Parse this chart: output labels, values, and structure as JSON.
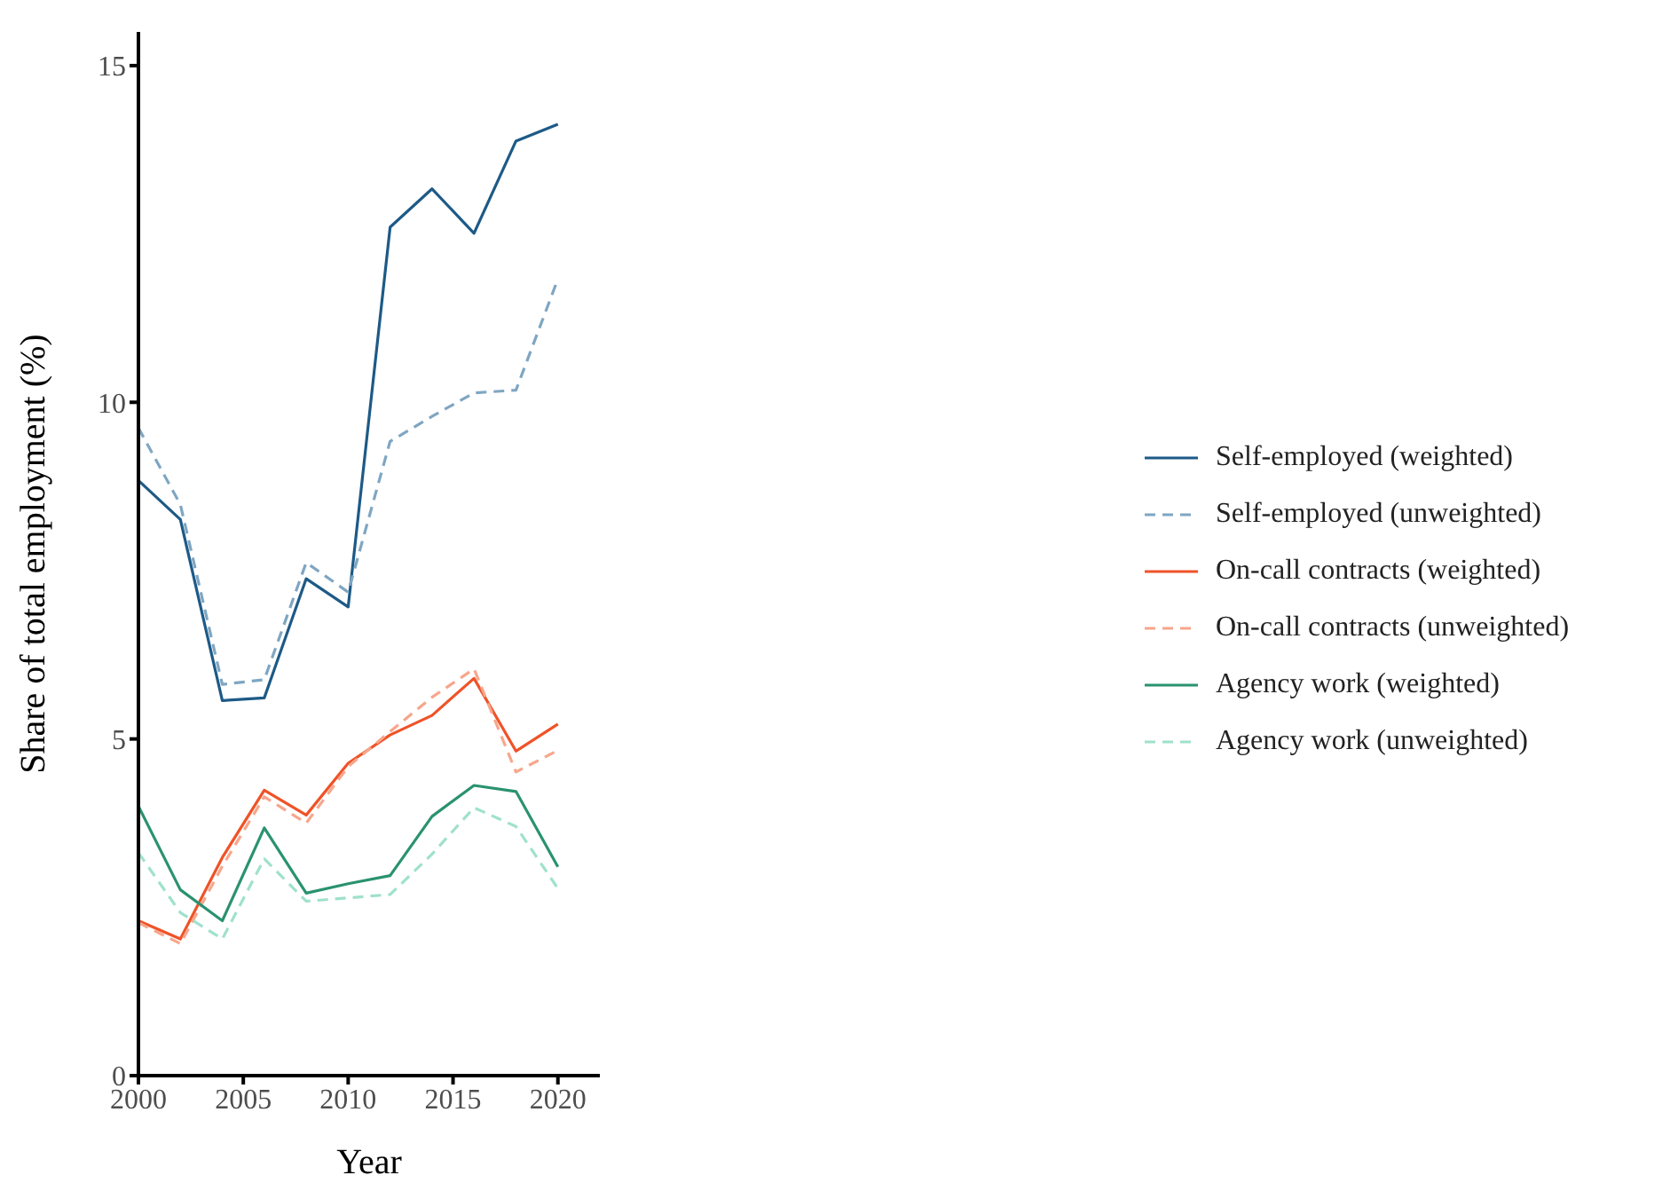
{
  "chart_data": {
    "type": "line",
    "xlabel": "Year",
    "ylabel": "Share of total employment (%)",
    "x": [
      2000,
      2002,
      2004,
      2006,
      2008,
      2010,
      2012,
      2014,
      2016,
      2018,
      2020
    ],
    "xlim": [
      2000,
      2022
    ],
    "xticks": [
      2000,
      2005,
      2010,
      2015,
      2020
    ],
    "ylim": [
      0,
      15.5
    ],
    "yticks": [
      0,
      5,
      10,
      15
    ],
    "grid": false,
    "legend": "right",
    "marker": "none",
    "series": [
      {
        "name": "Self-employed (weighted)",
        "color": "#1d5a87",
        "line_style": "solid",
        "values": [
          8.84,
          8.26,
          5.57,
          5.61,
          7.38,
          6.96,
          12.6,
          13.17,
          12.51,
          13.88,
          14.13
        ]
      },
      {
        "name": "Self-employed (unweighted)",
        "color": "#7fa6c2",
        "line_style": "dashed",
        "values": [
          9.62,
          8.48,
          5.81,
          5.88,
          7.62,
          7.18,
          9.42,
          9.79,
          10.14,
          10.18,
          11.83
        ]
      },
      {
        "name": "On-call contracts (weighted)",
        "color": "#ef5328",
        "line_style": "solid",
        "values": [
          2.3,
          2.03,
          3.24,
          4.24,
          3.87,
          4.64,
          5.06,
          5.35,
          5.9,
          4.82,
          5.22
        ]
      },
      {
        "name": "On-call contracts (unweighted)",
        "color": "#f7a68c",
        "line_style": "dashed",
        "values": [
          2.27,
          1.96,
          3.11,
          4.14,
          3.75,
          4.59,
          5.11,
          5.62,
          6.04,
          4.51,
          4.83
        ]
      },
      {
        "name": "Agency work (weighted)",
        "color": "#2a9270",
        "line_style": "solid",
        "values": [
          4.0,
          2.76,
          2.3,
          3.68,
          2.71,
          2.85,
          2.97,
          3.85,
          4.31,
          4.22,
          3.1
        ]
      },
      {
        "name": "Agency work (unweighted)",
        "color": "#9fe1cd",
        "line_style": "dashed",
        "values": [
          3.31,
          2.42,
          2.03,
          3.22,
          2.59,
          2.64,
          2.69,
          3.29,
          3.98,
          3.7,
          2.78
        ]
      }
    ]
  }
}
